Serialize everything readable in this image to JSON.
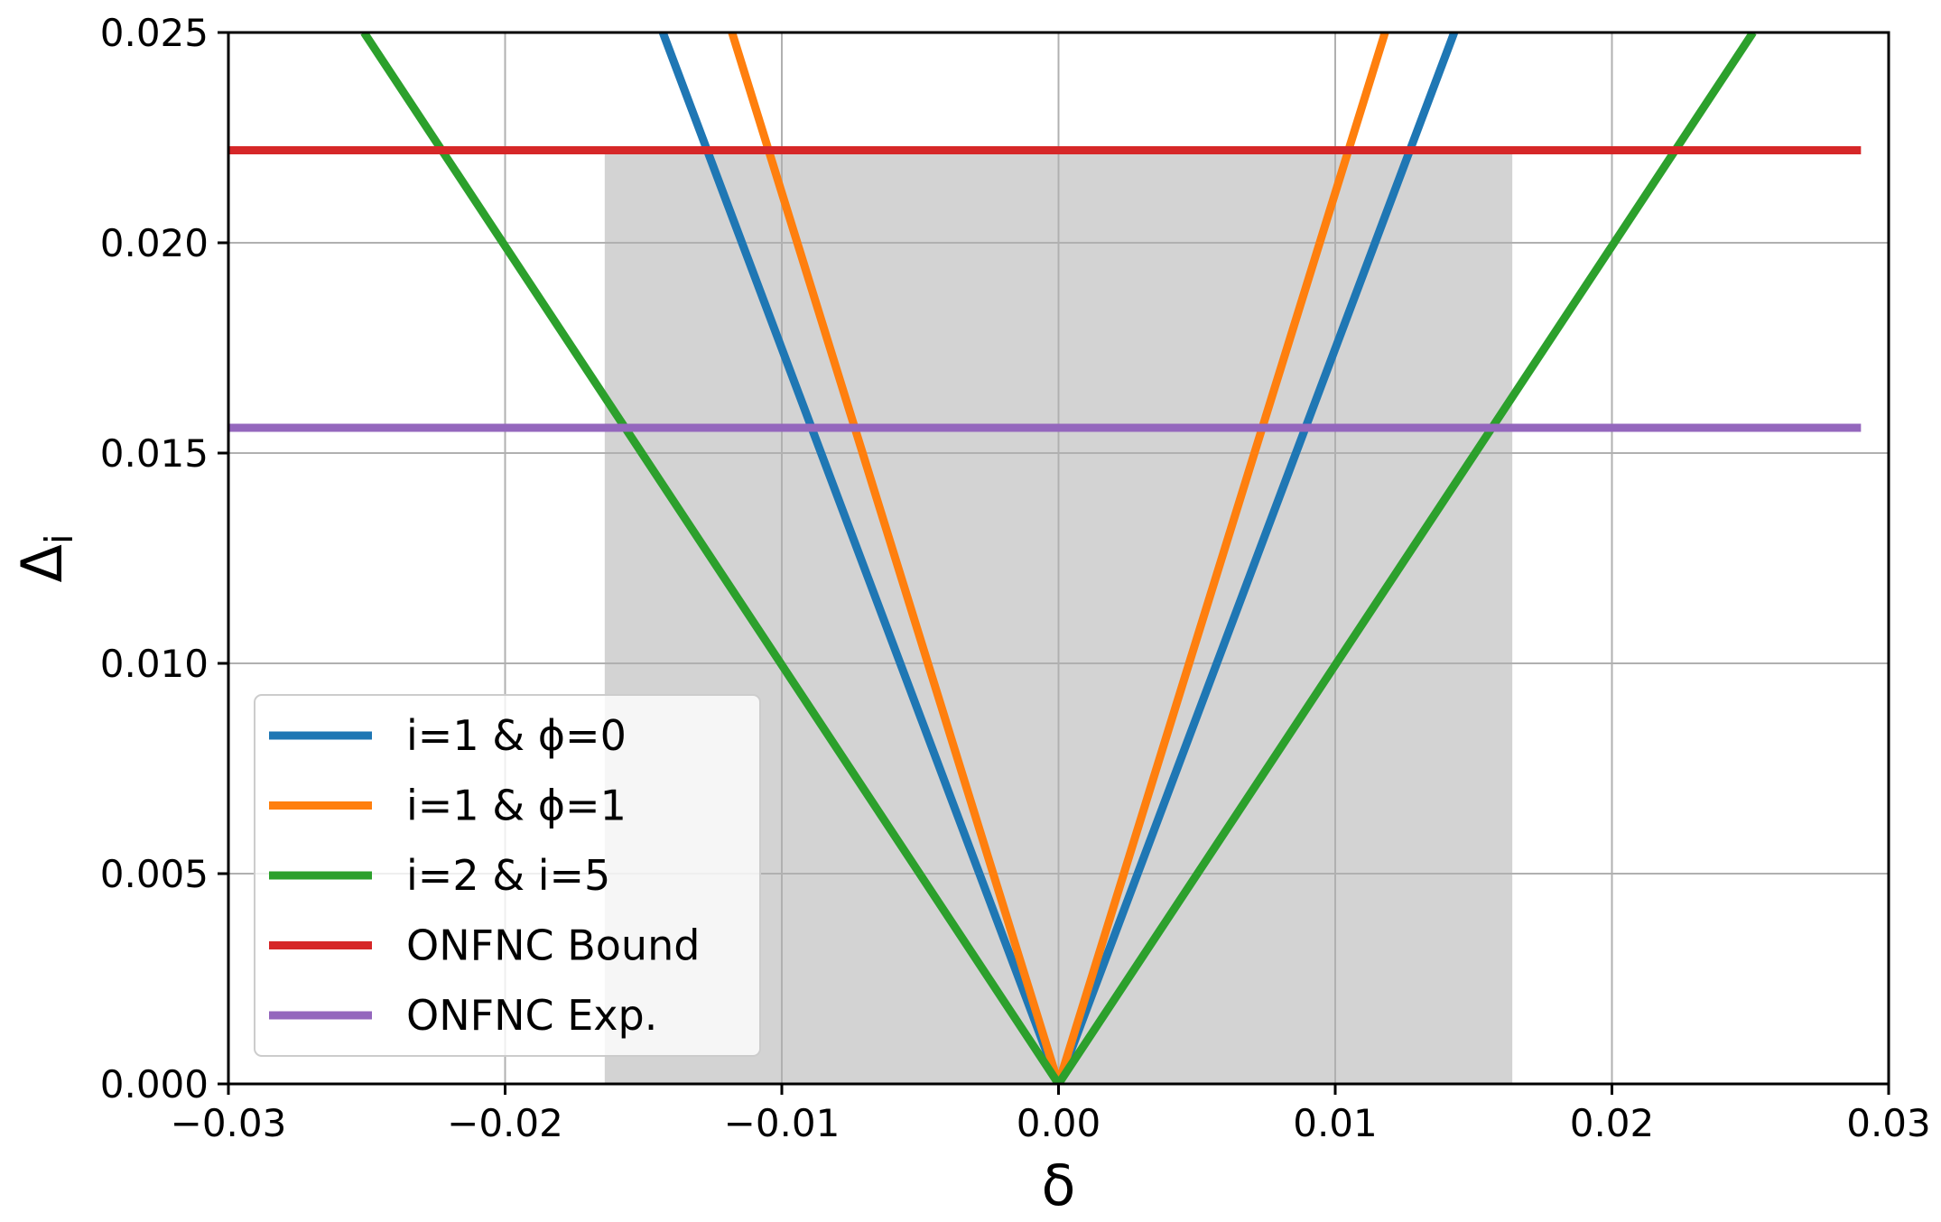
{
  "chart_data": {
    "type": "line",
    "title": "",
    "xlabel": "δ",
    "ylabel": "Δ",
    "ylabel_subscript": "i",
    "xlim": [
      -0.03,
      0.03
    ],
    "ylim": [
      0.0,
      0.025
    ],
    "xticks": [
      -0.03,
      -0.02,
      -0.01,
      0.0,
      0.01,
      0.02,
      0.03
    ],
    "xtick_labels": [
      "−0.03",
      "−0.02",
      "−0.01",
      "0.00",
      "0.01",
      "0.02",
      "0.03"
    ],
    "yticks": [
      0.0,
      0.005,
      0.01,
      0.015,
      0.02,
      0.025
    ],
    "ytick_labels": [
      "0.000",
      "0.005",
      "0.010",
      "0.015",
      "0.020",
      "0.025"
    ],
    "grid": true,
    "legend_position": "lower-left",
    "shaded_region": {
      "x": [
        -0.0164,
        0.0164
      ],
      "y": [
        0.0,
        0.0222
      ],
      "color": "#d3d3d3"
    },
    "series": [
      {
        "name": "i=1 & ϕ=0",
        "color": "#1f77b4",
        "x": [
          -0.0143,
          0.0,
          0.0143
        ],
        "y": [
          0.025,
          0.0,
          0.025
        ]
      },
      {
        "name": "i=1 & ϕ=1",
        "color": "#ff7f0e",
        "x": [
          -0.0118,
          0.0,
          0.0118
        ],
        "y": [
          0.025,
          0.0,
          0.025
        ]
      },
      {
        "name": "i=2 & i=5",
        "color": "#2ca02c",
        "x": [
          -0.0251,
          0.0,
          0.0251
        ],
        "y": [
          0.025,
          0.0,
          0.025
        ]
      },
      {
        "name": "ONFNC Bound",
        "color": "#d62728",
        "x": [
          -0.03,
          0.029
        ],
        "y": [
          0.0222,
          0.0222
        ]
      },
      {
        "name": "ONFNC Exp.",
        "color": "#9467bd",
        "x": [
          -0.03,
          0.029
        ],
        "y": [
          0.0156,
          0.0156
        ]
      }
    ]
  }
}
